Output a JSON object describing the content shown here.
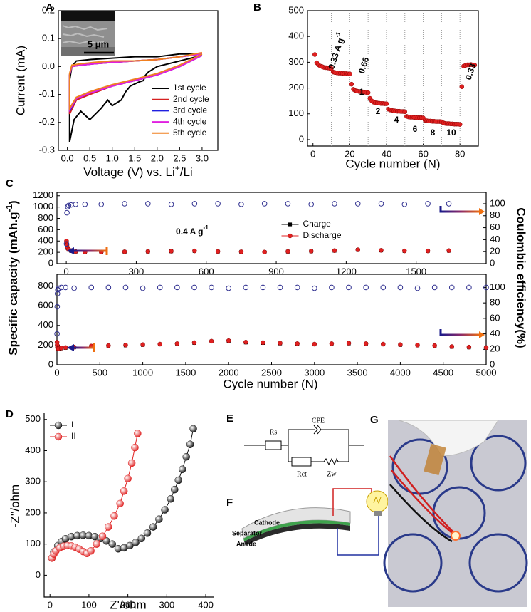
{
  "panel_labels": [
    "A",
    "B",
    "C",
    "D",
    "E",
    "F",
    "G"
  ],
  "chart_data": [
    {
      "type": "line",
      "y_label": "Current (mA)",
      "x_label": {
        "text": "Voltage (V) vs. Li",
        "sup": "+",
        "after": "/Li"
      },
      "xlim": [
        -0.2,
        3.35
      ],
      "ylim": [
        -0.3,
        0.2
      ],
      "xticks": [
        {
          "value": 0,
          "label": "0.0"
        },
        0.5,
        {
          "value": 1,
          "label": "1.0"
        },
        1.5,
        {
          "value": 2,
          "label": "2.0"
        },
        2.5,
        {
          "value": 3,
          "label": "3.0"
        }
      ],
      "yticks": [
        -0.3,
        -0.2,
        -0.1,
        {
          "value": 0,
          "label": "0.0"
        },
        0.1,
        0.2
      ],
      "box": true,
      "legend": "lower right",
      "inset_scale_bar": "5 μm",
      "series": [
        {
          "name": "1st cycle",
          "color": "#000000",
          "line": true,
          "x": [
            3.0,
            2.5,
            2.0,
            1.8,
            1.72,
            1.7,
            1.6,
            1.4,
            1.3,
            1.2,
            1.0,
            0.9,
            0.75,
            0.5,
            0.3,
            0.15,
            0.05,
            0.05,
            0.1,
            0.2,
            0.5,
            1.0,
            1.5,
            2.0,
            2.5,
            3.0
          ],
          "values": [
            0.04,
            0.02,
            0.0,
            -0.02,
            -0.035,
            -0.05,
            -0.055,
            -0.07,
            -0.09,
            -0.12,
            -0.14,
            -0.12,
            -0.15,
            -0.19,
            -0.16,
            -0.19,
            -0.27,
            -0.05,
            0.0,
            0.02,
            0.025,
            0.03,
            0.035,
            0.035,
            0.045,
            0.045
          ]
        },
        {
          "name": "2nd cycle",
          "color": "#d62020",
          "line": true,
          "x": [
            3.0,
            2.5,
            2.0,
            1.5,
            1.0,
            0.5,
            0.2,
            0.05,
            0.05,
            0.1,
            0.3,
            0.6,
            1.0,
            1.5,
            2.0,
            2.5,
            3.0
          ],
          "values": [
            0.04,
            0.0,
            -0.03,
            -0.05,
            -0.07,
            -0.1,
            -0.12,
            -0.17,
            -0.03,
            0.0,
            0.005,
            0.01,
            0.015,
            0.02,
            0.025,
            0.035,
            0.045
          ]
        },
        {
          "name": "3rd cycle",
          "color": "#2020e0",
          "line": true,
          "x": [
            3.0,
            2.5,
            2.0,
            1.5,
            1.0,
            0.5,
            0.2,
            0.05,
            0.05,
            0.1,
            0.3,
            0.6,
            1.0,
            1.5,
            2.0,
            2.5,
            3.0
          ],
          "values": [
            0.04,
            0.0,
            -0.03,
            -0.05,
            -0.07,
            -0.095,
            -0.115,
            -0.16,
            -0.03,
            0.0,
            0.005,
            0.01,
            0.015,
            0.02,
            0.025,
            0.035,
            0.045
          ]
        },
        {
          "name": "4th cycle",
          "color": "#e020e0",
          "line": true,
          "x": [
            3.0,
            2.5,
            2.0,
            1.5,
            1.0,
            0.5,
            0.2,
            0.05,
            0.05,
            0.1,
            0.3,
            0.6,
            1.0,
            1.5,
            2.0,
            2.5,
            3.0
          ],
          "values": [
            0.04,
            0.0,
            -0.03,
            -0.05,
            -0.07,
            -0.095,
            -0.115,
            -0.155,
            -0.03,
            0.0,
            0.005,
            0.01,
            0.015,
            0.02,
            0.025,
            0.035,
            0.045
          ]
        },
        {
          "name": "5th cycle",
          "color": "#f08020",
          "line": true,
          "x": [
            3.0,
            2.5,
            2.0,
            1.5,
            1.0,
            0.5,
            0.2,
            0.05,
            0.05,
            0.1,
            0.3,
            0.6,
            1.0,
            1.5,
            2.0,
            2.5,
            3.0
          ],
          "values": [
            0.045,
            0.005,
            -0.025,
            -0.045,
            -0.065,
            -0.09,
            -0.11,
            -0.15,
            -0.025,
            0.005,
            0.01,
            0.015,
            0.02,
            0.02,
            0.025,
            0.035,
            0.05
          ]
        }
      ]
    },
    {
      "type": "scatter",
      "x_label": "Cycle number (N)",
      "xlim": [
        -3,
        90
      ],
      "ylim": [
        -25,
        500
      ],
      "xticks": [
        0,
        20,
        40,
        60,
        80
      ],
      "yticks": [
        0,
        100,
        200,
        300,
        400,
        500
      ],
      "box": true,
      "marker": "circle",
      "color": "#e02020",
      "x": [
        1,
        2,
        3,
        4,
        5,
        6,
        7,
        8,
        9,
        10,
        11,
        12,
        13,
        14,
        15,
        16,
        17,
        18,
        19,
        20,
        21,
        22,
        23,
        24,
        25,
        26,
        27,
        28,
        29,
        30,
        31,
        32,
        33,
        34,
        35,
        36,
        37,
        38,
        39,
        40,
        41,
        42,
        43,
        44,
        45,
        46,
        47,
        48,
        49,
        50,
        51,
        52,
        53,
        54,
        55,
        56,
        57,
        58,
        59,
        60,
        61,
        62,
        63,
        64,
        65,
        66,
        67,
        68,
        69,
        70,
        71,
        72,
        73,
        74,
        75,
        76,
        77,
        78,
        79,
        80,
        81,
        82,
        83,
        84,
        85,
        86,
        87,
        88
      ],
      "values": [
        330,
        298,
        290,
        285,
        283,
        280,
        279,
        278,
        277,
        276,
        262,
        260,
        259,
        258,
        258,
        257,
        256,
        256,
        255,
        255,
        215,
        195,
        190,
        188,
        187,
        186,
        185,
        184,
        183,
        182,
        160,
        150,
        145,
        143,
        142,
        141,
        140,
        140,
        139,
        139,
        118,
        115,
        113,
        112,
        111,
        110,
        110,
        109,
        109,
        108,
        90,
        88,
        87,
        87,
        86,
        86,
        85,
        85,
        85,
        84,
        75,
        73,
        72,
        72,
        71,
        71,
        70,
        70,
        70,
        69,
        65,
        63,
        62,
        62,
        61,
        61,
        60,
        60,
        60,
        59,
        205,
        285,
        288,
        290,
        290,
        291,
        290,
        289
      ],
      "separators": [
        10,
        20,
        30,
        40,
        50,
        60,
        70,
        80
      ],
      "annotations": [
        {
          "text": "0.33 A g",
          "sup": "-1"
        },
        {
          "text": "0.66"
        },
        {
          "text": "1"
        },
        {
          "text": "2"
        },
        {
          "text": "4"
        },
        {
          "text": "6"
        },
        {
          "text": "8"
        },
        {
          "text": "10"
        },
        {
          "text": "0.33"
        }
      ]
    },
    {
      "type": "scatter",
      "y_label": {
        "text": "Specific capacity (mAh.g",
        "sup": "-1",
        "after": ")"
      },
      "y2_label": "Coulombic efficiency(%)",
      "xlim": [
        -40,
        1800
      ],
      "ylim": [
        0,
        1260
      ],
      "y2lim": [
        0,
        119
      ],
      "box": true,
      "legend": "center",
      "xticks": [
        0,
        300,
        600,
        900,
        1200,
        1500
      ],
      "yticks": [
        0,
        200,
        400,
        600,
        800,
        1000,
        1200
      ],
      "y2ticks": [
        0,
        20,
        40,
        60,
        80,
        100
      ],
      "annotations": [
        {
          "text": "0.4 A g",
          "sup": "-1"
        }
      ],
      "x": [
        1,
        3,
        6,
        10,
        20,
        40,
        80,
        150,
        250,
        350,
        450,
        550,
        650,
        750,
        850,
        950,
        1050,
        1150,
        1250,
        1350,
        1450,
        1550,
        1640
      ],
      "series": [
        {
          "name": "Charge",
          "color": "#000000",
          "marker": "square",
          "values": [
            380,
            320,
            275,
            245,
            228,
            213,
            203,
            204,
            208,
            213,
            218,
            223,
            213,
            208,
            203,
            213,
            218,
            228,
            243,
            233,
            223,
            223,
            228
          ]
        },
        {
          "name": "Discharge",
          "color": "#e02020",
          "marker": "circle",
          "values": [
            400,
            330,
            280,
            250,
            230,
            215,
            205,
            205,
            210,
            215,
            220,
            225,
            215,
            210,
            205,
            215,
            220,
            230,
            245,
            235,
            225,
            225,
            230
          ]
        },
        {
          "color": "#303090",
          "marker": "open-circle",
          "axis": "y2",
          "values": [
            33,
            85,
            95,
            97,
            98,
            99,
            99,
            99,
            100,
            100,
            99,
            100,
            100,
            99,
            100,
            100,
            99,
            100,
            100,
            100,
            99,
            100,
            100
          ]
        }
      ]
    },
    {
      "type": "scatter",
      "x_label": "Cycle number (N)",
      "xlim": [
        0,
        5000
      ],
      "ylim": [
        0,
        920
      ],
      "y2lim": [
        0,
        117
      ],
      "box": true,
      "xticks": [
        0,
        500,
        1000,
        1500,
        2000,
        2500,
        3000,
        3500,
        4000,
        4500,
        5000
      ],
      "yticks": [
        0,
        200,
        400,
        600,
        800
      ],
      "y2ticks": [
        0,
        20,
        40,
        60,
        80,
        100
      ],
      "x": [
        1,
        3,
        6,
        10,
        20,
        50,
        100,
        200,
        400,
        600,
        800,
        1000,
        1200,
        1400,
        1600,
        1800,
        2000,
        2200,
        2400,
        2600,
        2800,
        3000,
        3200,
        3400,
        3600,
        3800,
        4000,
        4200,
        4400,
        4600,
        4800,
        5000
      ],
      "series": [
        {
          "color": "#000000",
          "marker": "square",
          "values": [
            215,
            195,
            172,
            162,
            162,
            167,
            172,
            177,
            187,
            192,
            197,
            202,
            207,
            212,
            222,
            237,
            242,
            227,
            222,
            217,
            212,
            207,
            212,
            217,
            212,
            207,
            202,
            197,
            192,
            182,
            177,
            172
          ]
        },
        {
          "color": "#e02020",
          "marker": "circle",
          "values": [
            230,
            200,
            175,
            165,
            165,
            170,
            175,
            180,
            190,
            195,
            200,
            205,
            210,
            215,
            225,
            240,
            245,
            230,
            225,
            220,
            215,
            210,
            215,
            220,
            215,
            210,
            205,
            200,
            195,
            185,
            180,
            175
          ]
        },
        {
          "color": "#303090",
          "marker": "open-circle",
          "axis": "y2",
          "values": [
            40,
            75,
            92,
            97,
            99,
            100,
            100,
            99,
            100,
            100,
            100,
            99,
            100,
            100,
            100,
            100,
            99,
            100,
            100,
            100,
            100,
            99,
            100,
            100,
            100,
            100,
            100,
            99,
            100,
            100,
            100,
            100
          ]
        }
      ]
    },
    {
      "type": "scatter",
      "x_label": "Z'/ohm",
      "y_label": "-Z''/ohm",
      "xlim": [
        -15,
        420
      ],
      "ylim": [
        -70,
        520
      ],
      "box": false,
      "legend": "upper left",
      "xticks": [
        0,
        100,
        200,
        300,
        400
      ],
      "yticks": [
        0,
        100,
        200,
        300,
        400,
        500
      ],
      "series": [
        {
          "name": "I",
          "color": "#111111",
          "marker": "ball",
          "line": true,
          "x": [
            5,
            10,
            20,
            30,
            40,
            55,
            70,
            85,
            100,
            115,
            130,
            145,
            160,
            175,
            190,
            205,
            220,
            235,
            250,
            265,
            280,
            295,
            310,
            320,
            330,
            340,
            350,
            360,
            368
          ],
          "values": [
            55,
            75,
            95,
            108,
            117,
            124,
            127,
            128,
            127,
            124,
            118,
            110,
            100,
            85,
            88,
            95,
            105,
            118,
            135,
            155,
            180,
            210,
            245,
            275,
            305,
            340,
            380,
            420,
            470
          ]
        },
        {
          "name": "II",
          "color": "#e02020",
          "marker": "ball",
          "line": true,
          "x": [
            5,
            10,
            15,
            25,
            35,
            45,
            55,
            65,
            75,
            85,
            95,
            105,
            120,
            135,
            150,
            165,
            180,
            190,
            200,
            210,
            218,
            225
          ],
          "values": [
            55,
            68,
            78,
            88,
            93,
            95,
            94,
            90,
            84,
            76,
            70,
            78,
            100,
            125,
            155,
            190,
            230,
            270,
            310,
            360,
            410,
            455
          ]
        }
      ]
    }
  ],
  "circuit": {
    "rs": "Rs",
    "cpe": "CPE",
    "rct": "Rct",
    "zw": "Zw"
  },
  "battery": {
    "layers": [
      "Cathode",
      "Separator",
      "Anode"
    ]
  }
}
